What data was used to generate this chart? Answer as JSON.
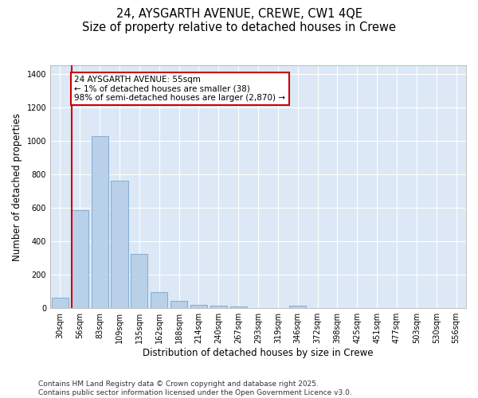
{
  "title": "24, AYSGARTH AVENUE, CREWE, CW1 4QE",
  "subtitle": "Size of property relative to detached houses in Crewe",
  "xlabel": "Distribution of detached houses by size in Crewe",
  "ylabel": "Number of detached properties",
  "categories": [
    "30sqm",
    "56sqm",
    "83sqm",
    "109sqm",
    "135sqm",
    "162sqm",
    "188sqm",
    "214sqm",
    "240sqm",
    "267sqm",
    "293sqm",
    "319sqm",
    "346sqm",
    "372sqm",
    "398sqm",
    "425sqm",
    "451sqm",
    "477sqm",
    "503sqm",
    "530sqm",
    "556sqm"
  ],
  "values": [
    65,
    585,
    1030,
    760,
    325,
    95,
    42,
    22,
    14,
    10,
    0,
    0,
    14,
    0,
    0,
    0,
    0,
    0,
    0,
    0,
    0
  ],
  "bar_color": "#b8d0e8",
  "bar_edge_color": "#6699cc",
  "vline_color": "#cc0000",
  "annotation_text": "24 AYSGARTH AVENUE: 55sqm\n← 1% of detached houses are smaller (38)\n98% of semi-detached houses are larger (2,870) →",
  "annotation_box_facecolor": "#ffffff",
  "annotation_box_edgecolor": "#cc0000",
  "ylim": [
    0,
    1450
  ],
  "yticks": [
    0,
    200,
    400,
    600,
    800,
    1000,
    1200,
    1400
  ],
  "fig_bg_color": "#ffffff",
  "plot_bg_color": "#dce8f5",
  "grid_color": "#ffffff",
  "footer": "Contains HM Land Registry data © Crown copyright and database right 2025.\nContains public sector information licensed under the Open Government Licence v3.0.",
  "title_fontsize": 10.5,
  "subtitle_fontsize": 9.5,
  "axis_label_fontsize": 8.5,
  "tick_fontsize": 7,
  "annot_fontsize": 7.5,
  "footer_fontsize": 6.5
}
